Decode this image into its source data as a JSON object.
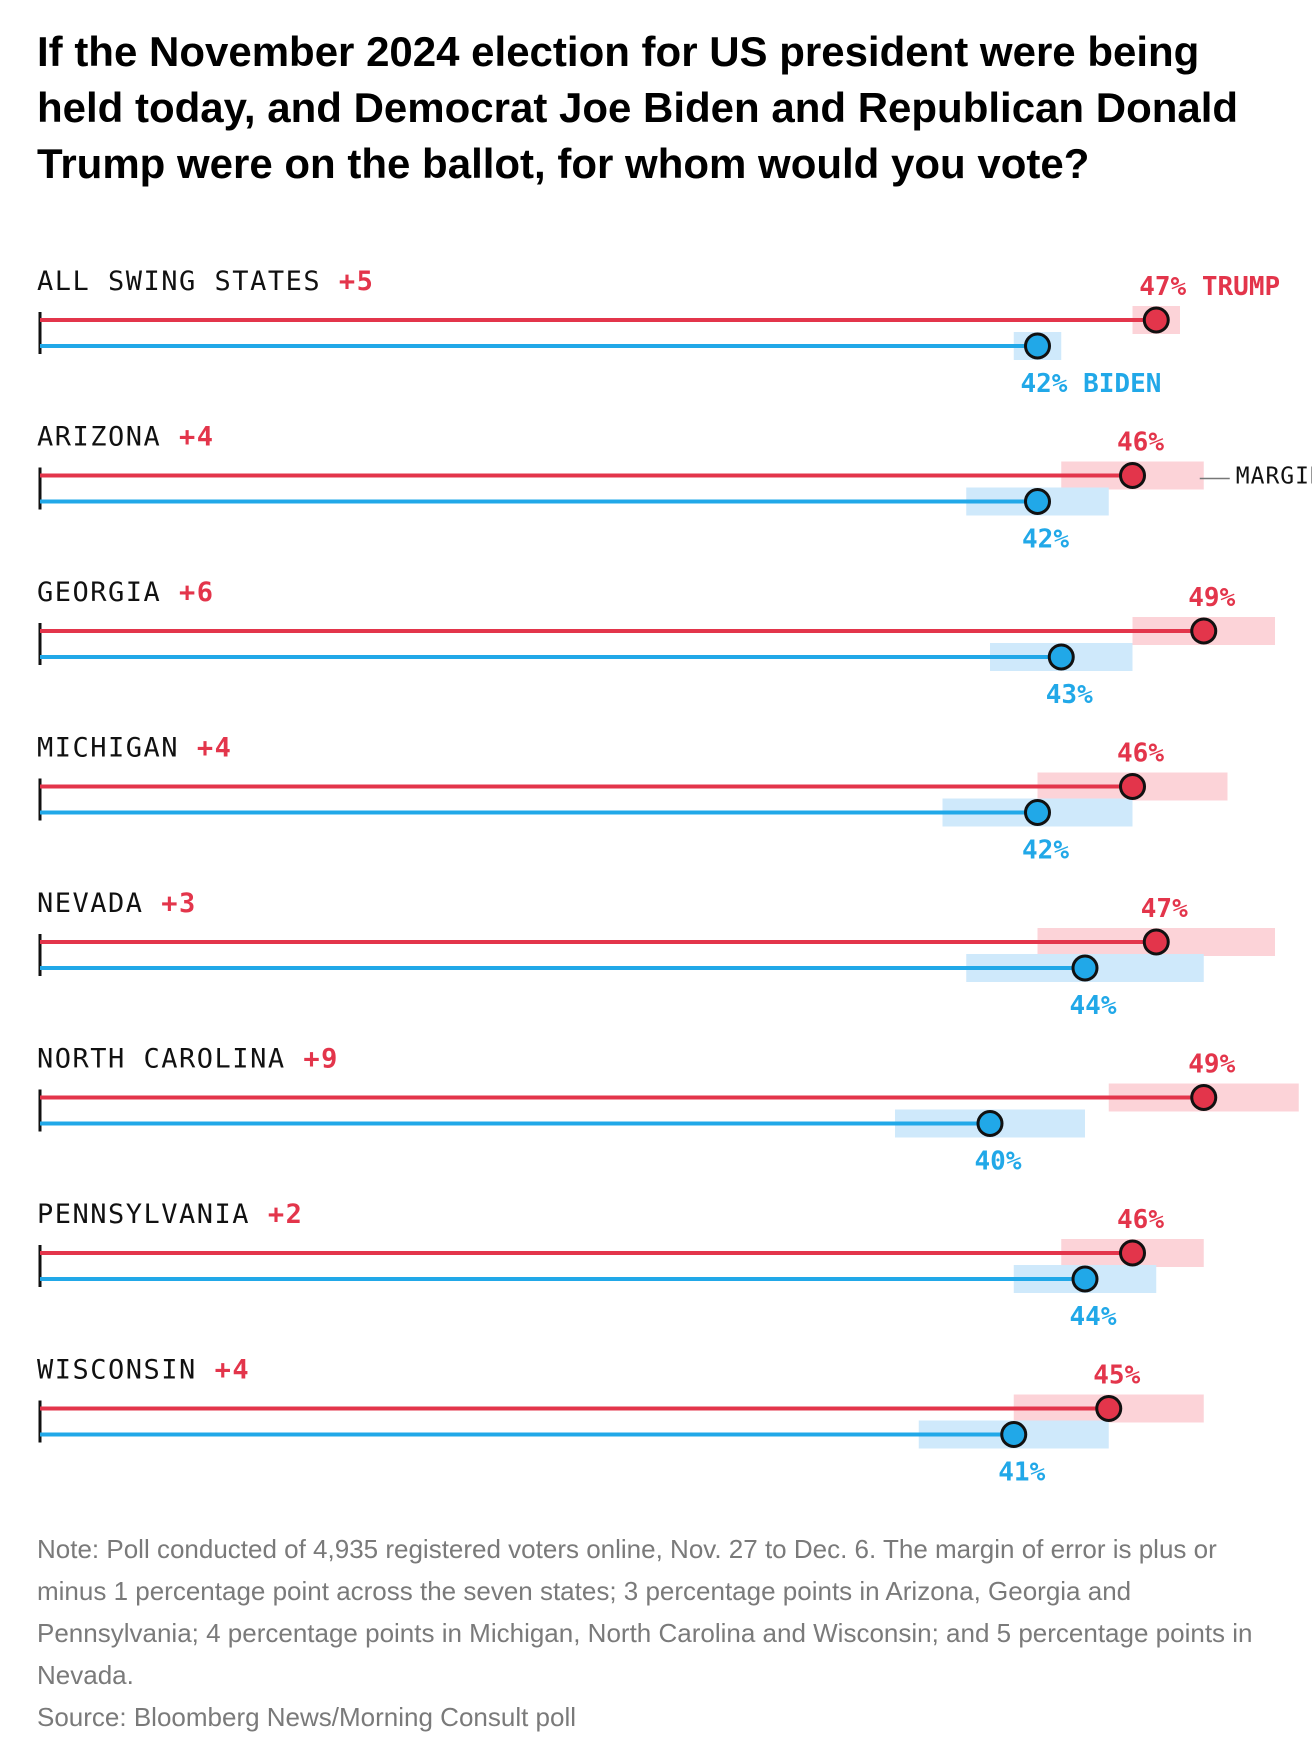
{
  "chart_data": {
    "type": "dot-plot",
    "title": "If the November 2024 election for US president were being held today, and Democrat Joe Biden and Republican Donald Trump were on the ballot, for whom would you vote?",
    "series": [
      {
        "name": "TRUMP",
        "color": "#e3354b",
        "band_color": "#fcd3d8"
      },
      {
        "name": "BIDEN",
        "color": "#21a8e8",
        "band_color": "#cfe9fb"
      }
    ],
    "rows": [
      {
        "label": "ALL SWING STATES",
        "lead": "+5",
        "trump": 47,
        "biden": 42,
        "trump_label": "47%",
        "biden_label": "42%",
        "moe": 1
      },
      {
        "label": "ARIZONA",
        "lead": "+4",
        "trump": 46,
        "biden": 42,
        "trump_label": "46%",
        "biden_label": "42%",
        "moe": 3
      },
      {
        "label": "GEORGIA",
        "lead": "+6",
        "trump": 49,
        "biden": 43,
        "trump_label": "49%",
        "biden_label": "43%",
        "moe": 3
      },
      {
        "label": "MICHIGAN",
        "lead": "+4",
        "trump": 46,
        "biden": 42,
        "trump_label": "46%",
        "biden_label": "42%",
        "moe": 4
      },
      {
        "label": "NEVADA",
        "lead": "+3",
        "trump": 47,
        "biden": 44,
        "trump_label": "47%",
        "biden_label": "44%",
        "moe": 5
      },
      {
        "label": "NORTH CAROLINA",
        "lead": "+9",
        "trump": 49,
        "biden": 40,
        "trump_label": "49%",
        "biden_label": "40%",
        "moe": 4
      },
      {
        "label": "PENNSYLVANIA",
        "lead": "+2",
        "trump": 46,
        "biden": 44,
        "trump_label": "46%",
        "biden_label": "44%",
        "moe": 3
      },
      {
        "label": "WISCONSIN",
        "lead": "+4",
        "trump": 45,
        "biden": 41,
        "trump_label": "45%",
        "biden_label": "41%",
        "moe": 4
      }
    ],
    "first_row_trump_name": "TRUMP",
    "first_row_biden_name": "BIDEN",
    "moe_annotation": "MARGIN OF ERROR",
    "x_range": [
      0,
      52
    ]
  },
  "footer": {
    "note": "Note: Poll conducted of 4,935 registered voters online, Nov. 27 to Dec. 6. The margin of error is plus or minus 1 percentage point across the seven states; 3 percentage points in Arizona, Georgia and Pennsylvania; 4 percentage points in Michigan, North Carolina and Wisconsin; and 5 percentage points in Nevada.",
    "source": "Source: Bloomberg News/Morning Consult poll"
  }
}
